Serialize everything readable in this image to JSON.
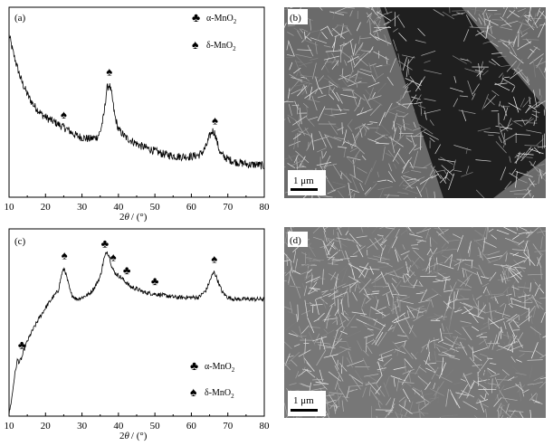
{
  "chart_data": [
    {
      "type": "line",
      "panel_label": "(a)",
      "xlabel_prefix": "2",
      "xlabel_theta": "θ",
      "xlabel_suffix": "/ (°)",
      "xlim": [
        10,
        80
      ],
      "xticks": [
        "10",
        "20",
        "30",
        "40",
        "50",
        "60",
        "70",
        "80"
      ],
      "legend": [
        {
          "symbol": "club",
          "text": "α-MnO",
          "sub": "2"
        },
        {
          "symbol": "spade",
          "text": "δ-MnO",
          "sub": "2"
        }
      ],
      "series": [
        {
          "x": [
            10,
            11,
            12,
            13,
            14,
            15,
            16,
            17,
            18,
            19,
            20,
            22,
            24,
            26,
            28,
            30,
            32,
            34,
            35,
            36,
            36.8,
            37.5,
            38.2,
            39,
            40,
            42,
            44,
            46,
            48,
            50,
            52,
            54,
            56,
            58,
            60,
            62,
            63,
            64,
            65,
            65.8,
            66.5,
            67.3,
            68,
            70,
            72,
            74,
            76,
            78,
            80
          ],
          "y": [
            1.0,
            0.88,
            0.78,
            0.69,
            0.62,
            0.56,
            0.51,
            0.47,
            0.44,
            0.41,
            0.39,
            0.36,
            0.33,
            0.3,
            0.26,
            0.24,
            0.23,
            0.24,
            0.28,
            0.4,
            0.6,
            0.63,
            0.55,
            0.4,
            0.3,
            0.24,
            0.21,
            0.18,
            0.16,
            0.14,
            0.12,
            0.11,
            0.1,
            0.1,
            0.1,
            0.11,
            0.13,
            0.17,
            0.25,
            0.29,
            0.27,
            0.18,
            0.12,
            0.08,
            0.06,
            0.05,
            0.04,
            0.04,
            0.03
          ]
        }
      ],
      "peak_markers": [
        {
          "symbol": "spade",
          "x": 25
        },
        {
          "symbol": "spade",
          "x": 37.5
        },
        {
          "symbol": "spade",
          "x": 66.5
        }
      ]
    },
    {
      "type": "line",
      "panel_label": "(c)",
      "xlabel_prefix": "2",
      "xlabel_theta": "θ",
      "xlabel_suffix": "/ (°)",
      "xlim": [
        10,
        80
      ],
      "xticks": [
        "10",
        "20",
        "30",
        "40",
        "50",
        "60",
        "70",
        "80"
      ],
      "legend": [
        {
          "symbol": "club",
          "text": "α-MnO",
          "sub": "2"
        },
        {
          "symbol": "spade",
          "text": "δ-MnO",
          "sub": "2"
        }
      ],
      "series": [
        {
          "x": [
            10,
            10.8,
            11.5,
            12.3,
            12.8,
            13.5,
            14.5,
            16,
            18,
            20,
            22,
            23.5,
            24.5,
            25.2,
            26,
            27,
            28.5,
            30,
            32,
            33.5,
            35,
            36,
            36.8,
            37.5,
            38.3,
            39.2,
            40.5,
            42,
            43.5,
            45,
            47,
            50,
            53,
            56,
            59,
            62,
            64,
            65.5,
            66.3,
            67.2,
            68.5,
            70,
            72,
            74,
            76,
            78,
            80
          ],
          "y": [
            0.0,
            0.1,
            0.22,
            0.32,
            0.3,
            0.33,
            0.4,
            0.47,
            0.55,
            0.62,
            0.68,
            0.72,
            0.82,
            0.85,
            0.78,
            0.7,
            0.67,
            0.68,
            0.7,
            0.74,
            0.8,
            0.9,
            0.95,
            0.92,
            0.85,
            0.82,
            0.8,
            0.77,
            0.74,
            0.73,
            0.71,
            0.7,
            0.69,
            0.68,
            0.68,
            0.68,
            0.72,
            0.8,
            0.83,
            0.78,
            0.71,
            0.68,
            0.67,
            0.67,
            0.67,
            0.67,
            0.67
          ]
        }
      ],
      "peak_markers": [
        {
          "symbol": "club",
          "x": 13.5
        },
        {
          "symbol": "spade",
          "x": 25.2
        },
        {
          "symbol": "club",
          "x": 36.3
        },
        {
          "symbol": "spade",
          "x": 38.6
        },
        {
          "symbol": "club",
          "x": 42.3
        },
        {
          "symbol": "club",
          "x": 50
        },
        {
          "symbol": "spade",
          "x": 66.3
        }
      ]
    }
  ],
  "micrographs": [
    {
      "panel_label": "(b)",
      "scale_bar": "1 μm"
    },
    {
      "panel_label": "(d)",
      "scale_bar": "1 μm"
    }
  ],
  "colors": {
    "line": "#000000",
    "background": "#ffffff",
    "sem_dark": "#1f1f1f",
    "sem_light": "#d8d8d8"
  }
}
